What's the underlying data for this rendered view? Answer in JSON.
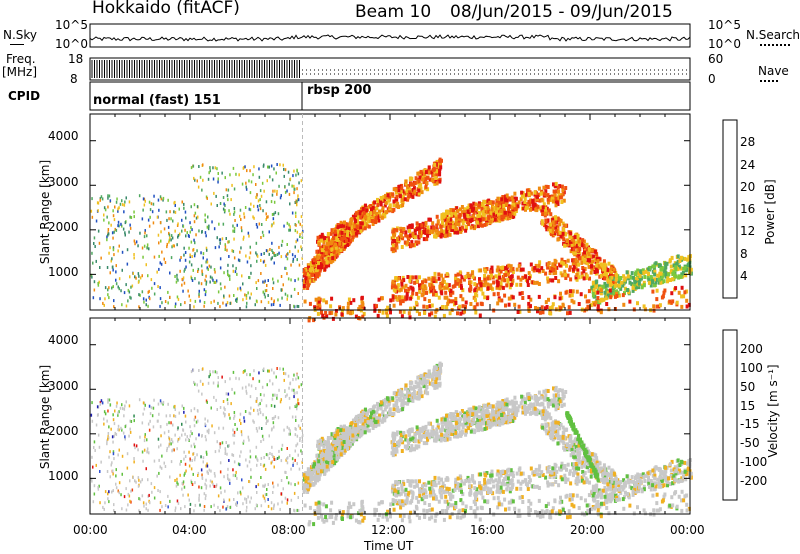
{
  "header": {
    "radar_title": "Hokkaido (fitACF)",
    "beam_label": "Beam 10",
    "date_range": "08/Jun/2015 - 09/Jun/2015"
  },
  "top_panels": {
    "nsky_label": "N.Sky",
    "nsky_ticks": [
      "10^5",
      "10^0"
    ],
    "nsearch_label": "N.Search",
    "nsearch_ticks": [
      "10^5",
      "10^0"
    ],
    "freq_label_1": "Freq.",
    "freq_label_2": "[MHz]",
    "freq_ticks": [
      "18",
      "8"
    ],
    "nave_label": "Nave",
    "nave_ticks": [
      "60",
      "0"
    ],
    "cpid_label": "CPID",
    "cpid_modes": [
      {
        "name": "normal (fast) 151",
        "start_hour": 0,
        "end_hour": 8.5
      },
      {
        "name": "rbsp 200",
        "start_hour": 8.5,
        "end_hour": 24
      }
    ]
  },
  "chart_data": [
    {
      "type": "heatmap",
      "title": "",
      "ylabel": "Slant Range [km]",
      "xlabel": "",
      "xlim_hours": [
        0,
        24
      ],
      "ylim": [
        200,
        4600
      ],
      "y_ticks": [
        1000,
        2000,
        3000,
        4000
      ],
      "colorbar": {
        "label": "Power [dB]",
        "ticks": [
          "4",
          "8",
          "12",
          "16",
          "20",
          "24",
          "28"
        ],
        "colors": [
          "#1010ee",
          "#2050c0",
          "#3a8a6a",
          "#4fa860",
          "#7ac83e",
          "#f0c020",
          "#f08a10",
          "#f05010",
          "#e01010"
        ]
      }
    },
    {
      "type": "heatmap",
      "title": "",
      "ylabel": "Slant Range [km]",
      "xlabel": "Time UT",
      "xlim_hours": [
        0,
        24
      ],
      "ylim": [
        200,
        4600
      ],
      "y_ticks": [
        1000,
        2000,
        3000,
        4000
      ],
      "x_tick_labels": [
        "00:00",
        "04:00",
        "08:00",
        "12:00",
        "16:00",
        "20:00",
        "00:00"
      ],
      "colorbar": {
        "label": "Velocity [m s⁻¹]",
        "ticks": [
          "200",
          "100",
          "50",
          "15",
          "-15",
          "-50",
          "-100",
          "-200"
        ],
        "colors": [
          "#2020b0",
          "#3050d0",
          "#2e8a50",
          "#60c040",
          "#c8c8c8",
          "#f0b020",
          "#f07010",
          "#f04010",
          "#e01010"
        ]
      }
    }
  ]
}
